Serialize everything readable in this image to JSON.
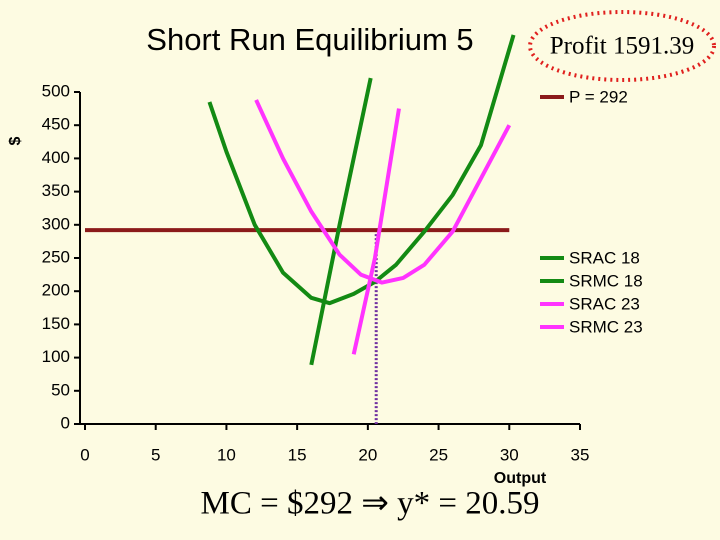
{
  "chart_data": {
    "type": "line",
    "title": "Short Run Equilibrium 5",
    "annotation": "Profit 1591.39",
    "footnote": "MC = $292 ⇒ y* = 20.59",
    "x_label": "Output",
    "y_label": "$",
    "series": [
      {
        "name": "P = 292",
        "color": "#8b1a1a",
        "x": [
          0,
          30
        ],
        "values": [
          292,
          292
        ]
      },
      {
        "name": "SRAC 18",
        "color": "#138a13",
        "x": [
          8.8,
          10,
          12,
          14,
          16,
          17.3,
          19,
          20.5,
          22,
          24,
          26,
          28,
          30.3
        ],
        "values": [
          485,
          410,
          300,
          228,
          190,
          182,
          196,
          214,
          240,
          290,
          345,
          420,
          586
        ]
      },
      {
        "name": "SRMC 18",
        "color": "#138a13",
        "x": [
          16,
          18,
          20.2
        ],
        "values": [
          89,
          300,
          521
        ]
      },
      {
        "name": "SRAC 23",
        "color": "#ff33ff",
        "x": [
          12.1,
          14,
          16,
          18,
          19.5,
          21,
          22.5,
          24,
          26,
          28,
          30
        ],
        "values": [
          488,
          400,
          320,
          255,
          225,
          213,
          220,
          240,
          290,
          370,
          450
        ]
      },
      {
        "name": "SRMC 23",
        "color": "#ff33ff",
        "x": [
          19,
          20.5,
          22.2
        ],
        "values": [
          105,
          250,
          475
        ]
      }
    ],
    "vline": {
      "x": 20.59,
      "y": 292,
      "color": "#7030a0"
    },
    "xlim": [
      0,
      35
    ],
    "xticks": [
      0,
      5,
      10,
      15,
      20,
      25,
      30,
      35
    ],
    "ylim": [
      0,
      500
    ],
    "yticks": [
      0,
      50,
      100,
      150,
      200,
      250,
      300,
      350,
      400,
      450,
      500
    ],
    "grid": false
  }
}
